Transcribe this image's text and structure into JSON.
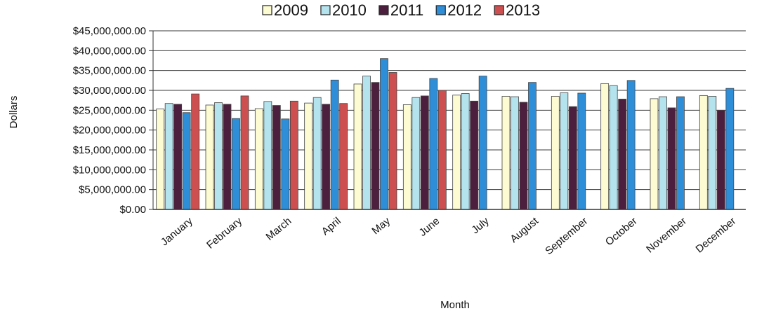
{
  "chart_data": {
    "type": "bar",
    "title": "",
    "xlabel": "Month",
    "ylabel": "Dollars",
    "ylim": [
      0,
      45000000
    ],
    "y_tick_step": 5000000,
    "y_tick_labels": [
      "$0.00",
      "$5,000,000.00",
      "$10,000,000.00",
      "$15,000,000.00",
      "$20,000,000.00",
      "$25,000,000.00",
      "$30,000,000.00",
      "$35,000,000.00",
      "$40,000,000.00",
      "$45,000,000.00"
    ],
    "grid": true,
    "legend_position": "top",
    "categories": [
      "January",
      "February",
      "March",
      "April",
      "May",
      "June",
      "July",
      "August",
      "September",
      "October",
      "November",
      "December"
    ],
    "series": [
      {
        "name": "2009",
        "color": "#fcfbd2",
        "values": [
          25300000,
          26300000,
          25400000,
          26800000,
          31600000,
          26400000,
          28800000,
          28500000,
          28500000,
          31700000,
          27900000,
          28700000
        ]
      },
      {
        "name": "2010",
        "color": "#b4e3ee",
        "values": [
          26700000,
          26900000,
          27200000,
          28200000,
          33600000,
          28200000,
          29200000,
          28400000,
          29400000,
          31200000,
          28400000,
          28500000
        ]
      },
      {
        "name": "2011",
        "color": "#4d1f3e",
        "values": [
          26500000,
          26500000,
          26200000,
          26500000,
          32000000,
          28600000,
          27300000,
          27000000,
          25900000,
          27800000,
          25600000,
          25000000
        ]
      },
      {
        "name": "2012",
        "color": "#2f8ed8",
        "values": [
          24400000,
          22900000,
          22800000,
          32600000,
          38000000,
          33000000,
          33600000,
          32000000,
          29300000,
          32500000,
          28400000,
          30500000
        ]
      },
      {
        "name": "2013",
        "color": "#cd4f4f",
        "values": [
          29100000,
          28600000,
          27300000,
          26700000,
          34500000,
          30000000,
          null,
          null,
          null,
          null,
          null,
          null
        ]
      }
    ]
  }
}
